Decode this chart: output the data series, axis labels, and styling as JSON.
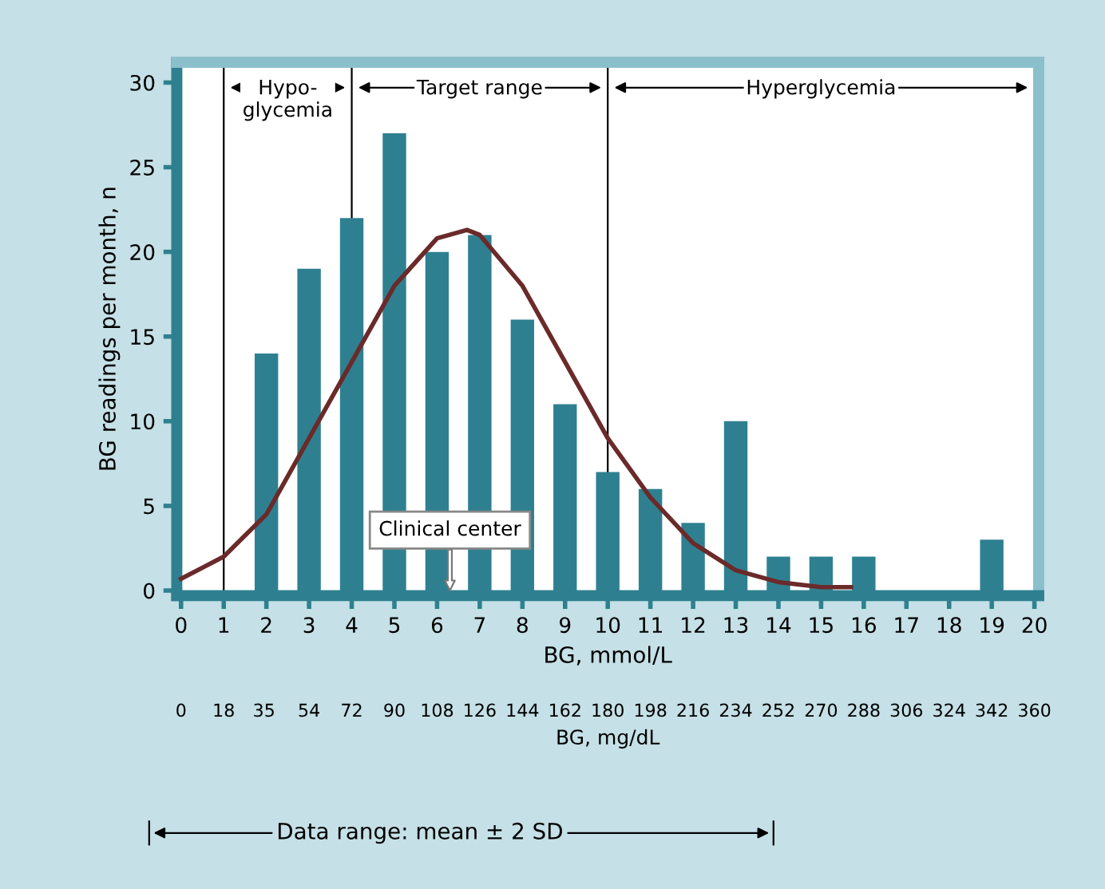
{
  "chart_data": {
    "type": "bar",
    "xlabel": "BG, mmol/L",
    "ylabel": "BG readings per month, n",
    "x2label": "BG, mg/dL",
    "series": [
      {
        "color": "#2e8090",
        "x": [
          2,
          3,
          4,
          5,
          6,
          7,
          8,
          9,
          10,
          11,
          12,
          13,
          14,
          15,
          16,
          19
        ],
        "values": [
          14,
          19,
          22,
          27,
          20,
          21,
          16,
          11,
          7,
          6,
          4,
          10,
          2,
          2,
          2,
          3
        ]
      },
      {
        "type": "line",
        "color": "#6b2a2a",
        "x": [
          0,
          1,
          2,
          3,
          4,
          5,
          6,
          6.7,
          7,
          8,
          9,
          10,
          11,
          12,
          13,
          14,
          15,
          15.7
        ],
        "values": [
          0.7,
          2,
          4.5,
          9,
          13.5,
          18,
          20.8,
          21.3,
          21,
          18,
          13.5,
          9,
          5.5,
          2.8,
          1.2,
          0.5,
          0.2,
          0.2
        ]
      }
    ],
    "xlim": [
      -0.1,
      20.1
    ],
    "xticks": [
      0,
      1,
      2,
      3,
      4,
      5,
      6,
      7,
      8,
      9,
      10,
      11,
      12,
      13,
      14,
      15,
      16,
      17,
      18,
      19,
      20
    ],
    "x2lim": [
      -1.8,
      361.8
    ],
    "x2ticks": [
      0,
      18,
      35,
      54,
      72,
      90,
      108,
      126,
      144,
      162,
      180,
      198,
      216,
      234,
      252,
      270,
      288,
      306,
      324,
      342,
      360
    ],
    "ylim": [
      -0.3,
      31.2
    ],
    "yticks": [
      0,
      5,
      10,
      15,
      20,
      25,
      30
    ],
    "ref_lines": [
      {
        "axis": "x",
        "value": 1
      },
      {
        "axis": "x",
        "value": 4
      },
      {
        "axis": "x",
        "value": 10
      }
    ],
    "annotations": [
      "Hypo-\nglycemia",
      "Target range",
      "Hyperglycemia",
      {
        "text": "Clinical center",
        "x": 6.3,
        "y": 0
      },
      "Data range: mean ± 2 SD"
    ],
    "line_style": "solid",
    "marker": "none",
    "grid": false,
    "legend": false
  }
}
